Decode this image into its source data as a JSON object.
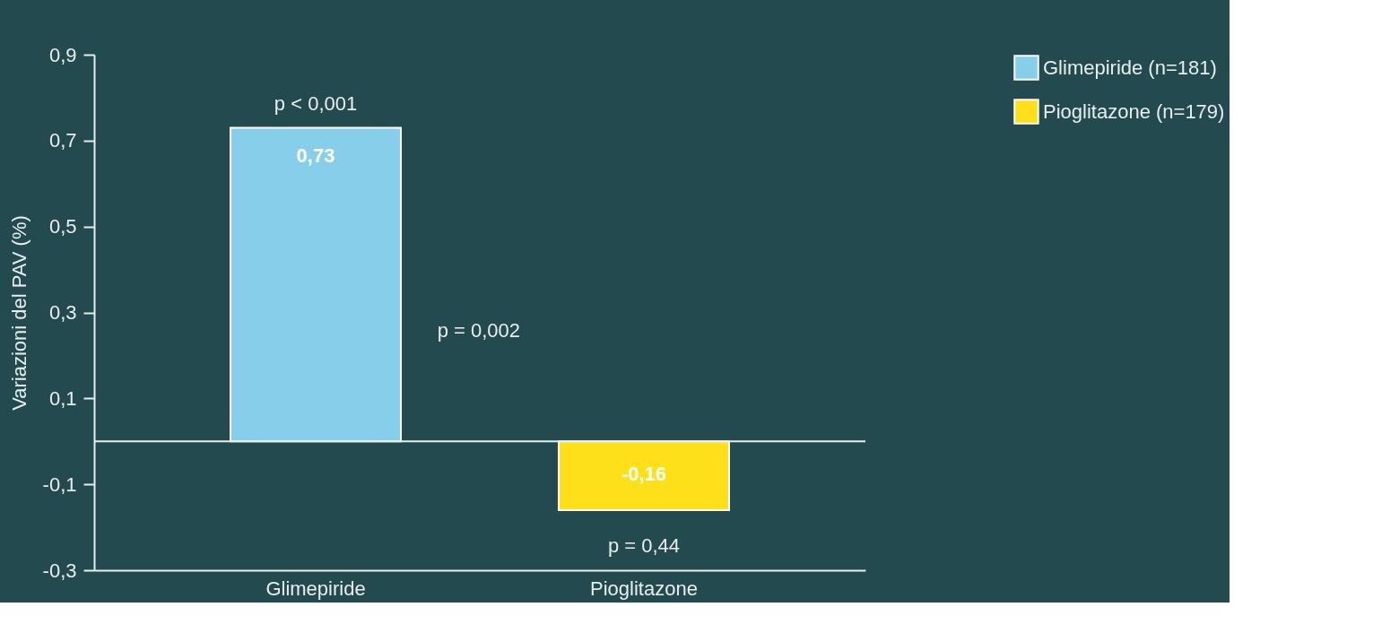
{
  "chart_data": {
    "type": "bar",
    "ylabel": "Variazioni del PAV (%)",
    "categories": [
      "Glimepiride",
      "Pioglitazone"
    ],
    "series": [
      {
        "name": "Glimepiride (n=181)",
        "color": "#87ceeb",
        "values": [
          0.73,
          null
        ],
        "value_labels": [
          "0,73",
          null
        ]
      },
      {
        "name": "Pioglitazone (n=179)",
        "color": "#fde01a",
        "values": [
          null,
          -0.16
        ],
        "value_labels": [
          null,
          "-0,16"
        ]
      }
    ],
    "ylim": [
      -0.3,
      0.9
    ],
    "yticks": [
      {
        "value": -0.3,
        "label": "-0,3"
      },
      {
        "value": -0.1,
        "label": "-0,1"
      },
      {
        "value": 0.1,
        "label": "0,1"
      },
      {
        "value": 0.3,
        "label": "0,3"
      },
      {
        "value": 0.5,
        "label": "0,5"
      },
      {
        "value": 0.7,
        "label": "0,7"
      },
      {
        "value": 0.9,
        "label": "0,9"
      }
    ],
    "ref_lines": [
      {
        "axis": "y",
        "value": 0,
        "color": "#e8eeee"
      }
    ],
    "annotations": [
      {
        "text": "p < 0,001",
        "x": "Glimepiride",
        "y": 0.73
      },
      "p = 0,002",
      {
        "text": "p = 0,44",
        "x": "Pioglitazone",
        "y": -0.16
      }
    ],
    "grid": false,
    "legend": "top right"
  }
}
